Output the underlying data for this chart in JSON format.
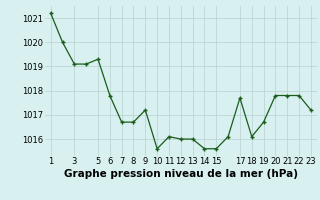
{
  "x": [
    1,
    2,
    3,
    4,
    5,
    6,
    7,
    8,
    9,
    10,
    11,
    12,
    13,
    14,
    15,
    16,
    17,
    18,
    19,
    20,
    21,
    22,
    23
  ],
  "y": [
    1021.2,
    1020.0,
    1019.1,
    1019.1,
    1019.3,
    1017.8,
    1016.7,
    1016.7,
    1017.2,
    1015.6,
    1016.1,
    1016.0,
    1016.0,
    1015.6,
    1015.6,
    1016.1,
    1017.7,
    1016.1,
    1016.7,
    1017.8,
    1017.8,
    1017.8,
    1017.2
  ],
  "xlabel": "Graphe pression niveau de la mer (hPa)",
  "ylim": [
    1015.3,
    1021.5
  ],
  "yticks": [
    1016,
    1017,
    1018,
    1019,
    1020,
    1021
  ],
  "xticks": [
    1,
    3,
    5,
    6,
    7,
    8,
    9,
    10,
    11,
    12,
    13,
    14,
    15,
    17,
    18,
    19,
    20,
    21,
    22,
    23
  ],
  "line_color": "#1a5c1a",
  "marker_color": "#1a5c1a",
  "bg_color": "#d8f0f0",
  "grid_color": "#b8d0d0",
  "xlabel_fontsize": 7.5,
  "tick_fontsize": 6
}
